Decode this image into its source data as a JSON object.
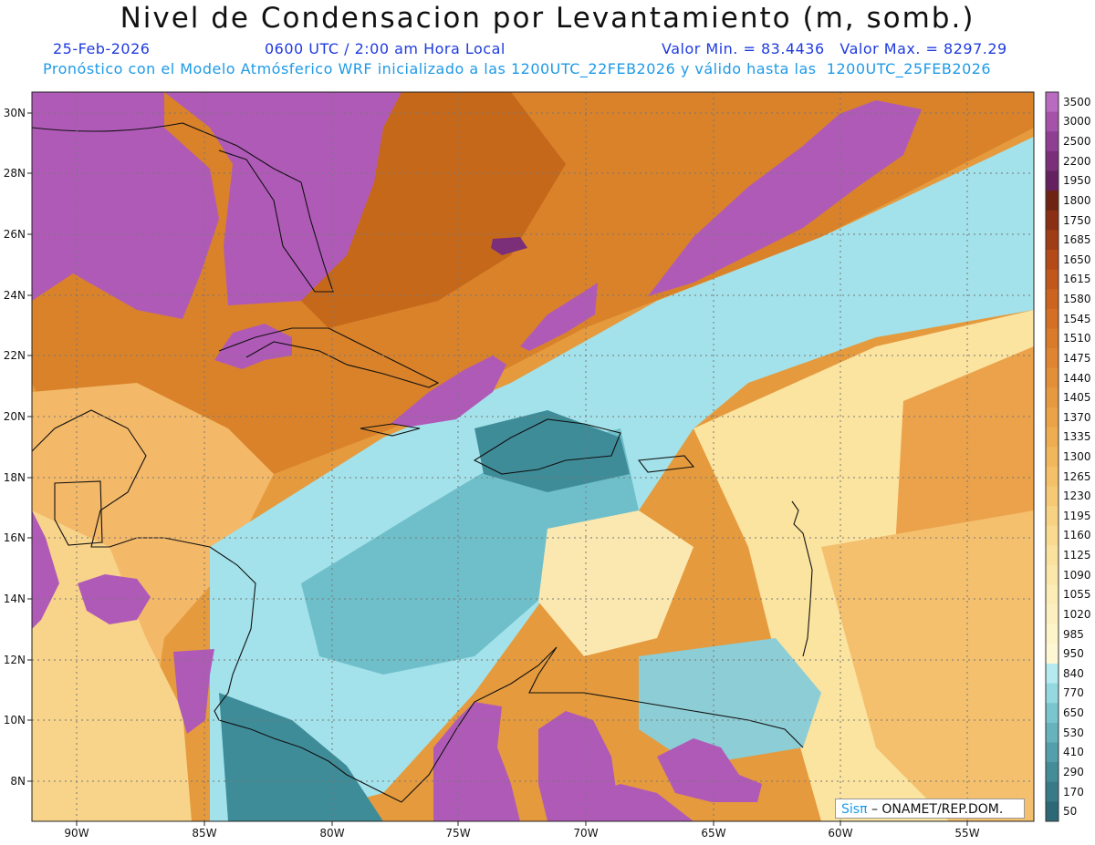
{
  "header": {
    "title": "Nivel de Condensacion por Levantamiento (m, somb.)",
    "date": "25-Feb-2026",
    "time": "0600 UTC / 2:00 am Hora Local",
    "minmax": "Valor Min. = 83.4436   Valor Max. = 8297.29",
    "model_info": "Pronóstico con el Modelo Atmósferico WRF inicializado a las 1200UTC_22FEB2026 y válido hasta las  1200UTC_25FEB2026"
  },
  "map": {
    "lat_labels": [
      "30N",
      "28N",
      "26N",
      "24N",
      "22N",
      "20N",
      "18N",
      "16N",
      "14N",
      "12N",
      "10N",
      "8N"
    ],
    "lon_labels": [
      "90W",
      "85W",
      "80W",
      "75W",
      "70W",
      "65W",
      "60W",
      "55W"
    ],
    "colors": {
      "purple": "#b05ab8",
      "orange_dark": "#c4691b",
      "orange": "#e08a2e",
      "tan": "#f2b96a",
      "yellow": "#fbe3a0",
      "cyan_light": "#a3e2ea",
      "cyan": "#6bbdc7",
      "teal": "#3f8c99"
    }
  },
  "colorbar": {
    "levels": [
      "3500",
      "3000",
      "2500",
      "2200",
      "1950",
      "1800",
      "1750",
      "1685",
      "1650",
      "1615",
      "1580",
      "1545",
      "1510",
      "1475",
      "1440",
      "1405",
      "1370",
      "1335",
      "1300",
      "1265",
      "1230",
      "1195",
      "1160",
      "1125",
      "1090",
      "1055",
      "1020",
      "985",
      "950",
      "840",
      "770",
      "650",
      "530",
      "410",
      "290",
      "170",
      "50"
    ],
    "colors": [
      "#b86bc0",
      "#a552aa",
      "#8e3f92",
      "#7a2f78",
      "#65215f",
      "#6e2413",
      "#8a2f14",
      "#a03c16",
      "#b34a18",
      "#c2571b",
      "#cc631f",
      "#d46f25",
      "#da7a2b",
      "#df8532",
      "#e38f38",
      "#e7993f",
      "#ebA347",
      "#eead51",
      "#f1b75c",
      "#f4c068",
      "#f6c975",
      "#f8d283",
      "#f9da90",
      "#fae19d",
      "#fbe7a9",
      "#fcecb5",
      "#fdf0c0",
      "#fef4ca",
      "#fef7d4",
      "#b5eaf0",
      "#94d8e0",
      "#7ac6cf",
      "#66b3bd",
      "#549fab",
      "#458c99",
      "#387a87",
      "#2c6875"
    ]
  },
  "footer": {
    "logo_sis": "Sisπ",
    "logo_text": "– ONAMET/REP.DOM."
  }
}
